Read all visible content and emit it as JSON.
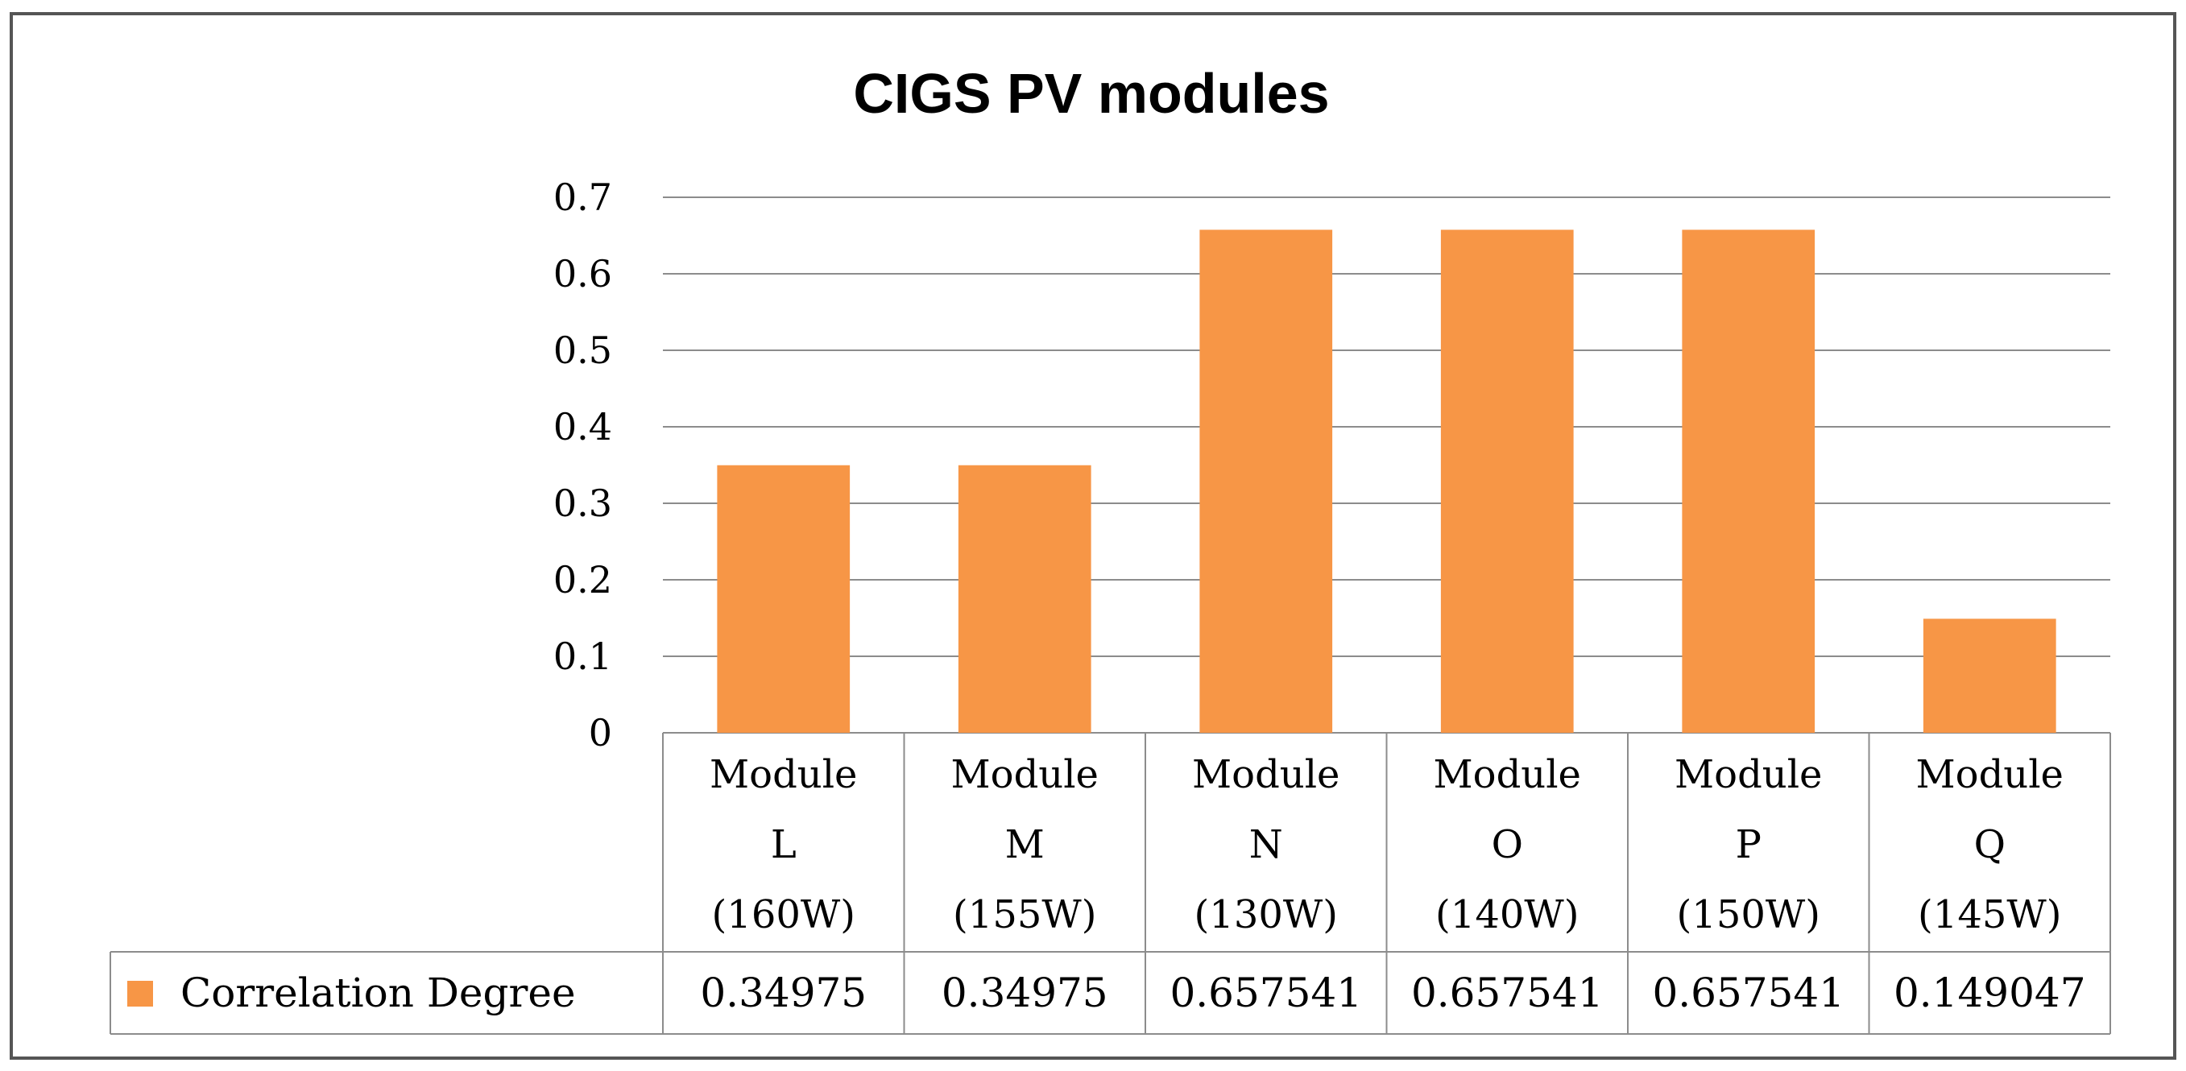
{
  "chart_data": {
    "type": "bar",
    "title": "CIGS PV modules",
    "categories": [
      [
        "Module",
        "L",
        "(160W)"
      ],
      [
        "Module",
        "M",
        "(155W)"
      ],
      [
        "Module",
        "N",
        "(130W)"
      ],
      [
        "Module",
        "O",
        "(140W)"
      ],
      [
        "Module",
        "P",
        "(150W)"
      ],
      [
        "Module",
        "Q",
        "(145W)"
      ]
    ],
    "series": [
      {
        "name": "Correlation Degree",
        "values": [
          0.34975,
          0.34975,
          0.657541,
          0.657541,
          0.657541,
          0.149047
        ],
        "value_labels": [
          "0.34975",
          "0.34975",
          "0.657541",
          "0.657541",
          "0.657541",
          "0.149047"
        ],
        "color": "#f79646"
      }
    ],
    "ylim": [
      0,
      0.7
    ],
    "yticks": [
      "0",
      "0.1",
      "0.2",
      "0.3",
      "0.4",
      "0.5",
      "0.6",
      "0.7"
    ],
    "xlabel": "",
    "ylabel": "",
    "grid": true,
    "legend": "data-table"
  }
}
